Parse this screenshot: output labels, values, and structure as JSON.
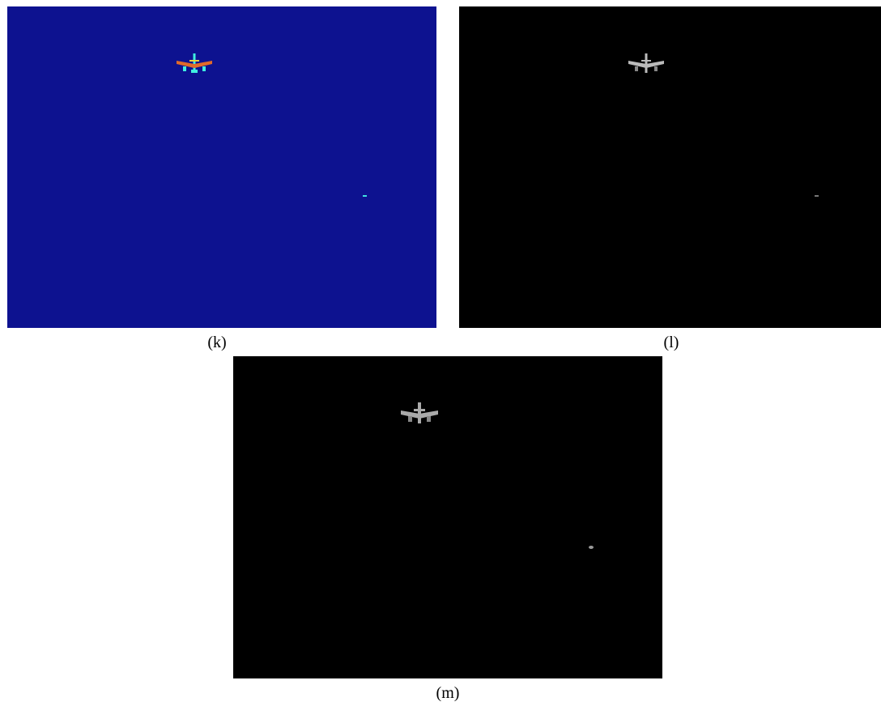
{
  "panels": [
    {
      "label": "(k)"
    },
    {
      "label": "(l)"
    },
    {
      "label": "(m)"
    }
  ]
}
